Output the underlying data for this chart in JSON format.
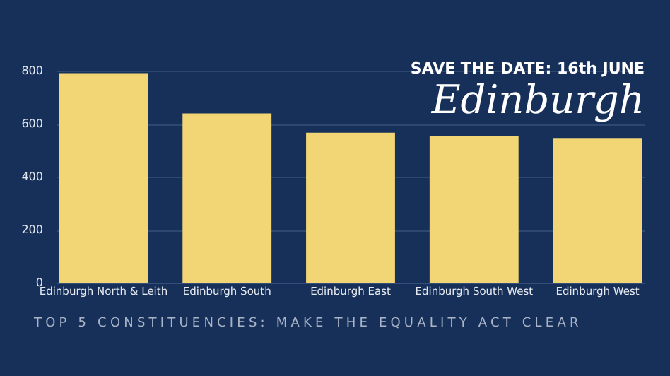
{
  "chart_data": {
    "type": "bar",
    "title": "SAVE THE DATE: 16th JUNE",
    "subtitle": "Edinburgh",
    "categories": [
      "Edinburgh North & Leith",
      "Edinburgh South",
      "Edinburgh East",
      "Edinburgh South West",
      "Edinburgh West"
    ],
    "values": [
      791,
      639,
      566,
      554,
      546
    ],
    "color": "#f2d675",
    "ylim": [
      0,
      800
    ],
    "yticks": [
      0,
      200,
      400,
      600,
      800
    ],
    "grid": "y",
    "annotations": [
      "TOP 5 CONSTITUENCIES: MAKE THE EQUALITY ACT CLEAR"
    ]
  }
}
